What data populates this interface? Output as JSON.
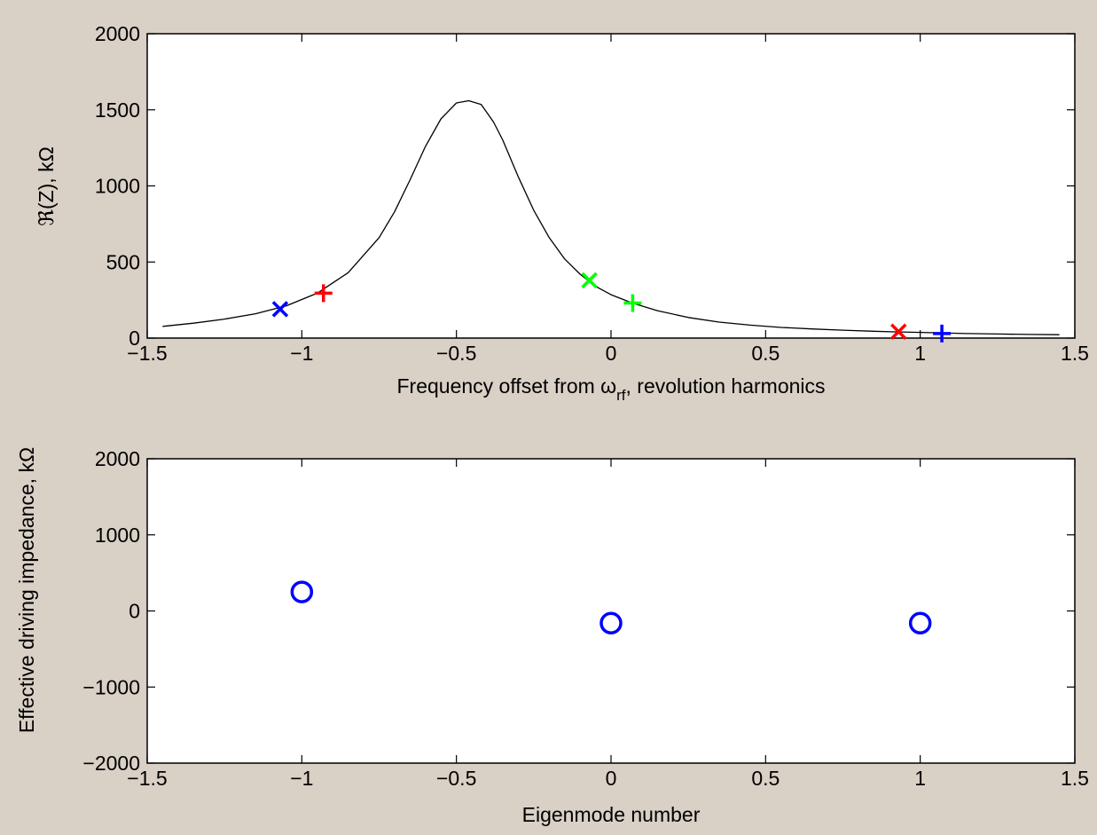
{
  "chart_data": [
    {
      "type": "line",
      "xlabel_parts": {
        "before": "Frequency offset from ω",
        "sub": "rf",
        "after": ", revolution harmonics"
      },
      "ylabel": "ℜ(Z), kΩ",
      "xlim": [
        -1.5,
        1.5
      ],
      "ylim": [
        0,
        2000
      ],
      "xticks": [
        -1.5,
        -1,
        -0.5,
        0,
        0.5,
        1,
        1.5
      ],
      "yticks": [
        0,
        500,
        1000,
        1500,
        2000
      ],
      "xtick_labels": [
        "−1.5",
        "−1",
        "−0.5",
        "0",
        "0.5",
        "1",
        "1.5"
      ],
      "ytick_labels": [
        "0",
        "500",
        "1000",
        "1500",
        "2000"
      ],
      "curve": {
        "color": "#000000",
        "x": [
          -1.45,
          -1.35,
          -1.25,
          -1.15,
          -1.05,
          -0.95,
          -0.85,
          -0.75,
          -0.7,
          -0.65,
          -0.6,
          -0.55,
          -0.5,
          -0.46,
          -0.42,
          -0.38,
          -0.35,
          -0.3,
          -0.25,
          -0.2,
          -0.15,
          -0.1,
          -0.05,
          0.0,
          0.07,
          0.15,
          0.25,
          0.35,
          0.45,
          0.55,
          0.65,
          0.75,
          0.85,
          0.93,
          1.05,
          1.15,
          1.25,
          1.35,
          1.45
        ],
        "y": [
          77,
          98,
          125,
          160,
          212,
          295,
          430,
          660,
          830,
          1040,
          1260,
          1440,
          1545,
          1560,
          1535,
          1420,
          1300,
          1060,
          840,
          660,
          520,
          420,
          340,
          285,
          230,
          180,
          135,
          105,
          85,
          70,
          60,
          52,
          45,
          40,
          35,
          30,
          27,
          24,
          22
        ]
      },
      "markers": [
        {
          "x": -1.07,
          "y": 190,
          "symbol": "x",
          "color": "#0000ff"
        },
        {
          "x": -0.93,
          "y": 295,
          "symbol": "+",
          "color": "#ff0000"
        },
        {
          "x": -0.07,
          "y": 380,
          "symbol": "x",
          "color": "#00ff00"
        },
        {
          "x": 0.07,
          "y": 230,
          "symbol": "+",
          "color": "#00ff00"
        },
        {
          "x": 0.93,
          "y": 42,
          "symbol": "x",
          "color": "#ff0000"
        },
        {
          "x": 1.07,
          "y": 30,
          "symbol": "+",
          "color": "#0000ff"
        }
      ]
    },
    {
      "type": "scatter",
      "xlabel": "Eigenmode number",
      "ylabel": "Effective driving impedance, kΩ",
      "xlim": [
        -1.5,
        1.5
      ],
      "ylim": [
        -2000,
        2000
      ],
      "xticks": [
        -1.5,
        -1,
        -0.5,
        0,
        0.5,
        1,
        1.5
      ],
      "yticks": [
        -2000,
        -1000,
        0,
        1000,
        2000
      ],
      "xtick_labels": [
        "−1.5",
        "−1",
        "−0.5",
        "0",
        "0.5",
        "1",
        "1.5"
      ],
      "ytick_labels": [
        "−2000",
        "−1000",
        "0",
        "1000",
        "2000"
      ],
      "points": {
        "x": [
          -1,
          0,
          1
        ],
        "y": [
          250,
          -160,
          -160
        ],
        "symbol": "o",
        "color": "#0000ff"
      }
    }
  ]
}
